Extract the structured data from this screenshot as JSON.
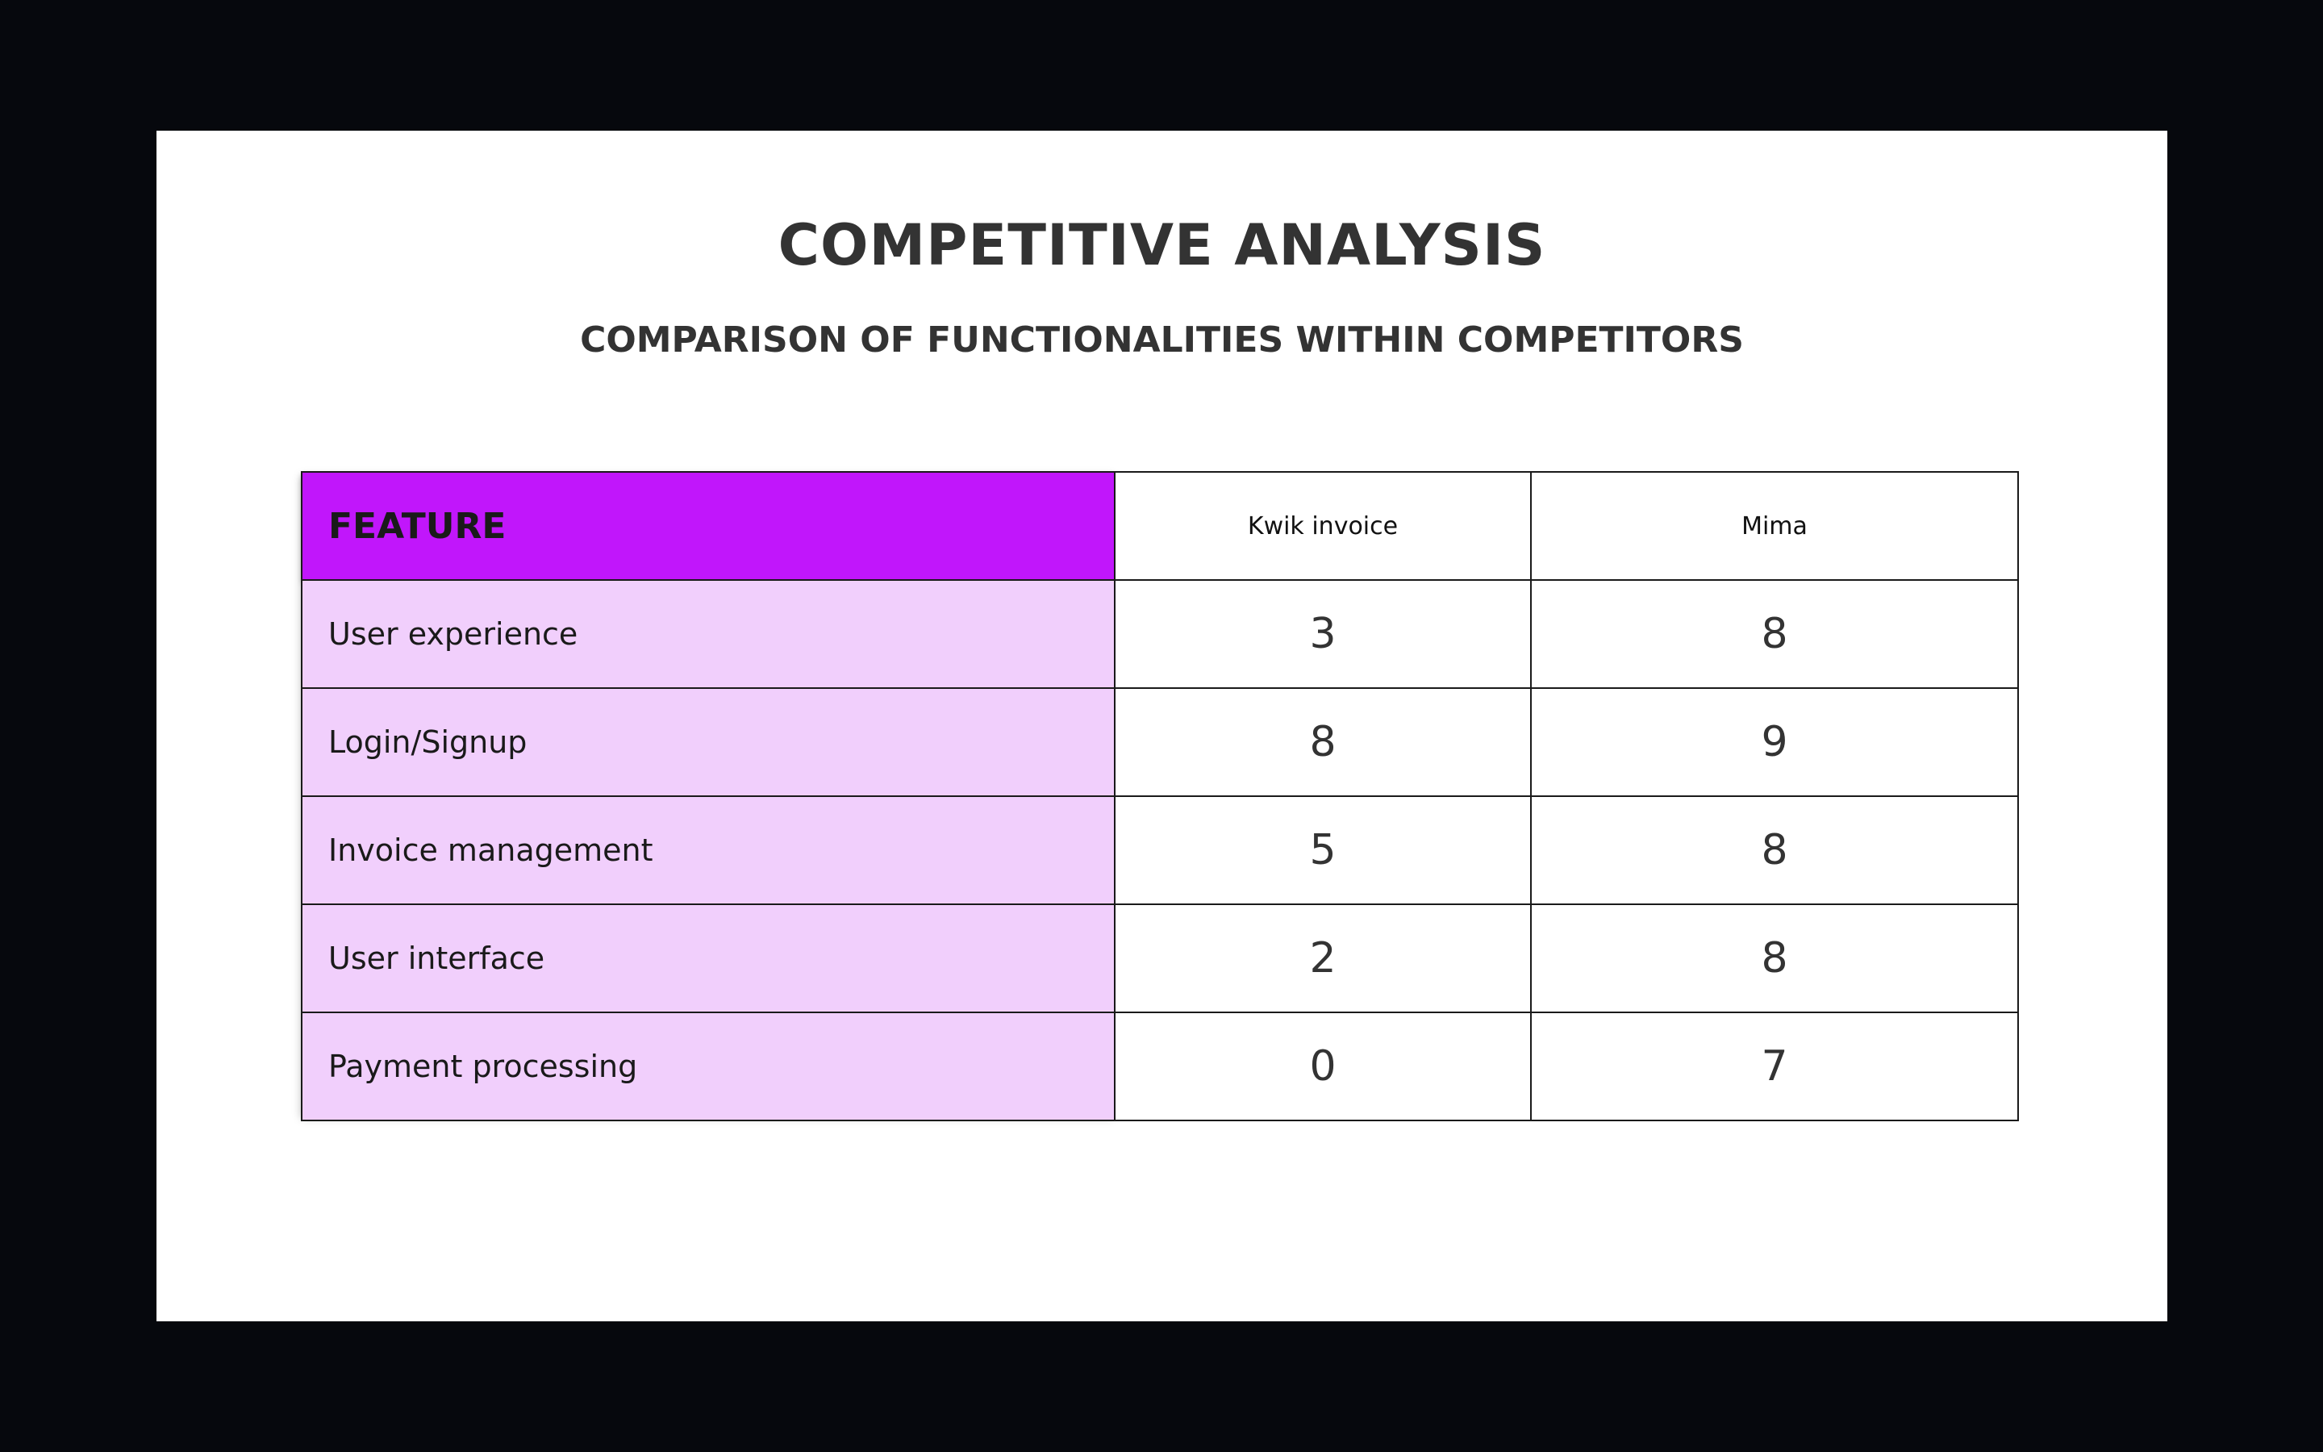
{
  "slide": {
    "title": "COMPETITIVE ANALYSIS",
    "subtitle": "COMPARISON OF FUNCTIONALITIES WITHIN COMPETITORS"
  },
  "table": {
    "header": {
      "feature": "FEATURE",
      "competitors": [
        "Kwik invoice",
        "Mima"
      ]
    },
    "rows": [
      {
        "feature": "User experience",
        "kwik": "3",
        "mima": "8"
      },
      {
        "feature": "Login/Signup",
        "kwik": "8",
        "mima": "9"
      },
      {
        "feature": "Invoice management",
        "kwik": "5",
        "mima": "8"
      },
      {
        "feature": "User interface",
        "kwik": "2",
        "mima": "8"
      },
      {
        "feature": "Payment processing",
        "kwik": "0",
        "mima": "7"
      }
    ]
  },
  "colors": {
    "page_background": "#06080d",
    "slide_background": "#ffffff",
    "header_accent": "#c116fb",
    "feature_cell_fill": "#f1cffc",
    "title_text": "#333333"
  }
}
